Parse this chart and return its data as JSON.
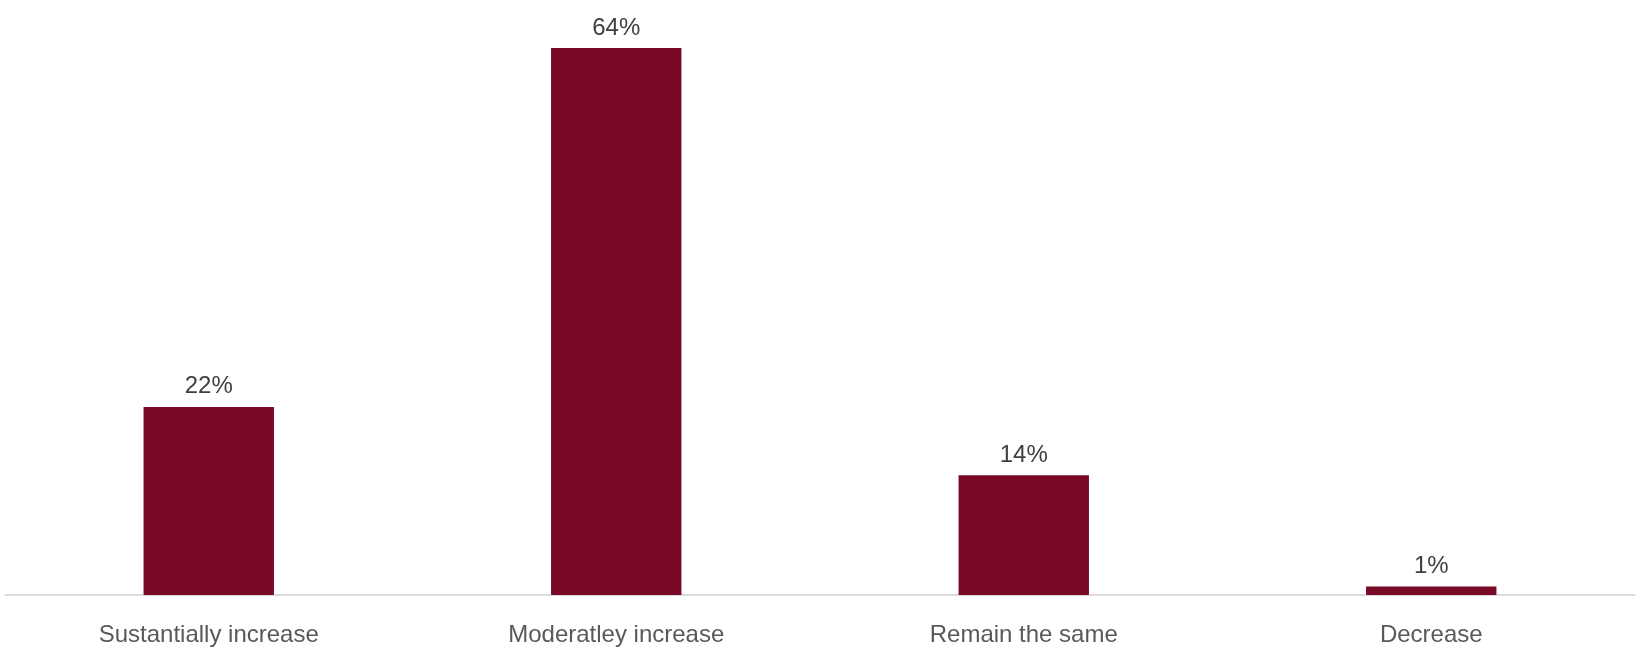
{
  "chart_data": {
    "type": "bar",
    "categories": [
      "Sustantially increase",
      "Moderatley increase",
      "Remain the same",
      "Decrease"
    ],
    "values": [
      22,
      64,
      14,
      1
    ],
    "value_labels": [
      "22%",
      "64%",
      "14%",
      "1%"
    ],
    "color": "#780a28",
    "grid": false
  }
}
